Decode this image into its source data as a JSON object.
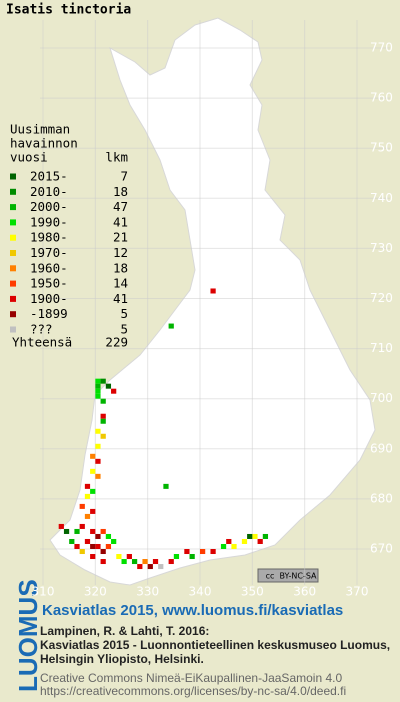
{
  "map": {
    "title": "Isatis tinctoria",
    "xticks": [
      310,
      320,
      330,
      340,
      350,
      360,
      370
    ],
    "yticks": [
      670,
      680,
      690,
      700,
      710,
      720,
      730,
      740,
      750,
      760,
      770
    ],
    "legend": {
      "heading": [
        "Uusimman",
        "havainnon",
        "vuosi"
      ],
      "count_heading": "lkm",
      "rows": [
        {
          "label": "2015-",
          "count": 7,
          "color": "#006400"
        },
        {
          "label": "2010-",
          "count": 18,
          "color": "#008c00"
        },
        {
          "label": "2000-",
          "count": 47,
          "color": "#00b400"
        },
        {
          "label": "1990-",
          "count": 41,
          "color": "#00e000"
        },
        {
          "label": "1980-",
          "count": 21,
          "color": "#ffff00"
        },
        {
          "label": "1970-",
          "count": 12,
          "color": "#f0c800"
        },
        {
          "label": "1960-",
          "count": 18,
          "color": "#ff8000"
        },
        {
          "label": "1950-",
          "count": 14,
          "color": "#ff3c00"
        },
        {
          "label": "1900-",
          "count": 41,
          "color": "#dc0000"
        },
        {
          "label": "-1899",
          "count": 5,
          "color": "#960000"
        },
        {
          "label": "???",
          "count": 5,
          "color": "#c0c0c0"
        }
      ],
      "total_label": "Yhteensä",
      "total": 229
    },
    "squares": [
      [
        342,
        721,
        8
      ],
      [
        334,
        714,
        2
      ],
      [
        333,
        682,
        2
      ],
      [
        320,
        703,
        3
      ],
      [
        320,
        702,
        2
      ],
      [
        321,
        703,
        1
      ],
      [
        320,
        701,
        3
      ],
      [
        322,
        702,
        0
      ],
      [
        323,
        701,
        8
      ],
      [
        320,
        700,
        3
      ],
      [
        321,
        699,
        2
      ],
      [
        321,
        696,
        8
      ],
      [
        321,
        695,
        2
      ],
      [
        320,
        693,
        4
      ],
      [
        321,
        692,
        5
      ],
      [
        320,
        690,
        4
      ],
      [
        319,
        688,
        6
      ],
      [
        320,
        687,
        8
      ],
      [
        319,
        685,
        4
      ],
      [
        320,
        684,
        6
      ],
      [
        318,
        682,
        8
      ],
      [
        319,
        681,
        3
      ],
      [
        318,
        680,
        4
      ],
      [
        317,
        678,
        7
      ],
      [
        319,
        677,
        8
      ],
      [
        318,
        676,
        6
      ],
      [
        313,
        674,
        8
      ],
      [
        314,
        673,
        0
      ],
      [
        316,
        673,
        2
      ],
      [
        317,
        674,
        8
      ],
      [
        319,
        673,
        8
      ],
      [
        320,
        672,
        9
      ],
      [
        321,
        673,
        7
      ],
      [
        322,
        672,
        3
      ],
      [
        318,
        671,
        8
      ],
      [
        319,
        670,
        9
      ],
      [
        320,
        670,
        8
      ],
      [
        321,
        669,
        9
      ],
      [
        322,
        670,
        7
      ],
      [
        323,
        671,
        3
      ],
      [
        315,
        671,
        2
      ],
      [
        316,
        670,
        8
      ],
      [
        317,
        669,
        5
      ],
      [
        319,
        668,
        8
      ],
      [
        321,
        667,
        8
      ],
      [
        324,
        668,
        4
      ],
      [
        325,
        667,
        3
      ],
      [
        326,
        668,
        8
      ],
      [
        327,
        667,
        2
      ],
      [
        328,
        666,
        8
      ],
      [
        329,
        667,
        6
      ],
      [
        330,
        666,
        9
      ],
      [
        331,
        667,
        8
      ],
      [
        332,
        666,
        10
      ],
      [
        334,
        667,
        8
      ],
      [
        335,
        668,
        3
      ],
      [
        337,
        669,
        8
      ],
      [
        338,
        668,
        2
      ],
      [
        340,
        669,
        7
      ],
      [
        342,
        669,
        8
      ],
      [
        344,
        670,
        3
      ],
      [
        346,
        670,
        4
      ],
      [
        348,
        671,
        4
      ],
      [
        350,
        672,
        4
      ],
      [
        351,
        671,
        8
      ],
      [
        352,
        672,
        2
      ],
      [
        349,
        672,
        0
      ],
      [
        345,
        671,
        8
      ]
    ],
    "license_badge": [
      "cc",
      "BY-NC-SA"
    ]
  },
  "footer": {
    "logo": "LUOMUS",
    "link": "Kasviatlas 2015, www.luomus.fi/kasviatlas",
    "citation": [
      "Lampinen, R. & Lahti, T. 2016:",
      "Kasviatlas 2015 - Luonnontieteellinen keskusmuseo Luomus,",
      "Helsingin Yliopisto, Helsinki."
    ],
    "license": [
      "Creative Commons Nimeä-EiKaupallinen-JaaSamoin 4.0",
      "https://creativecommons.org/licenses/by-nc-sa/4.0/deed.fi"
    ]
  }
}
